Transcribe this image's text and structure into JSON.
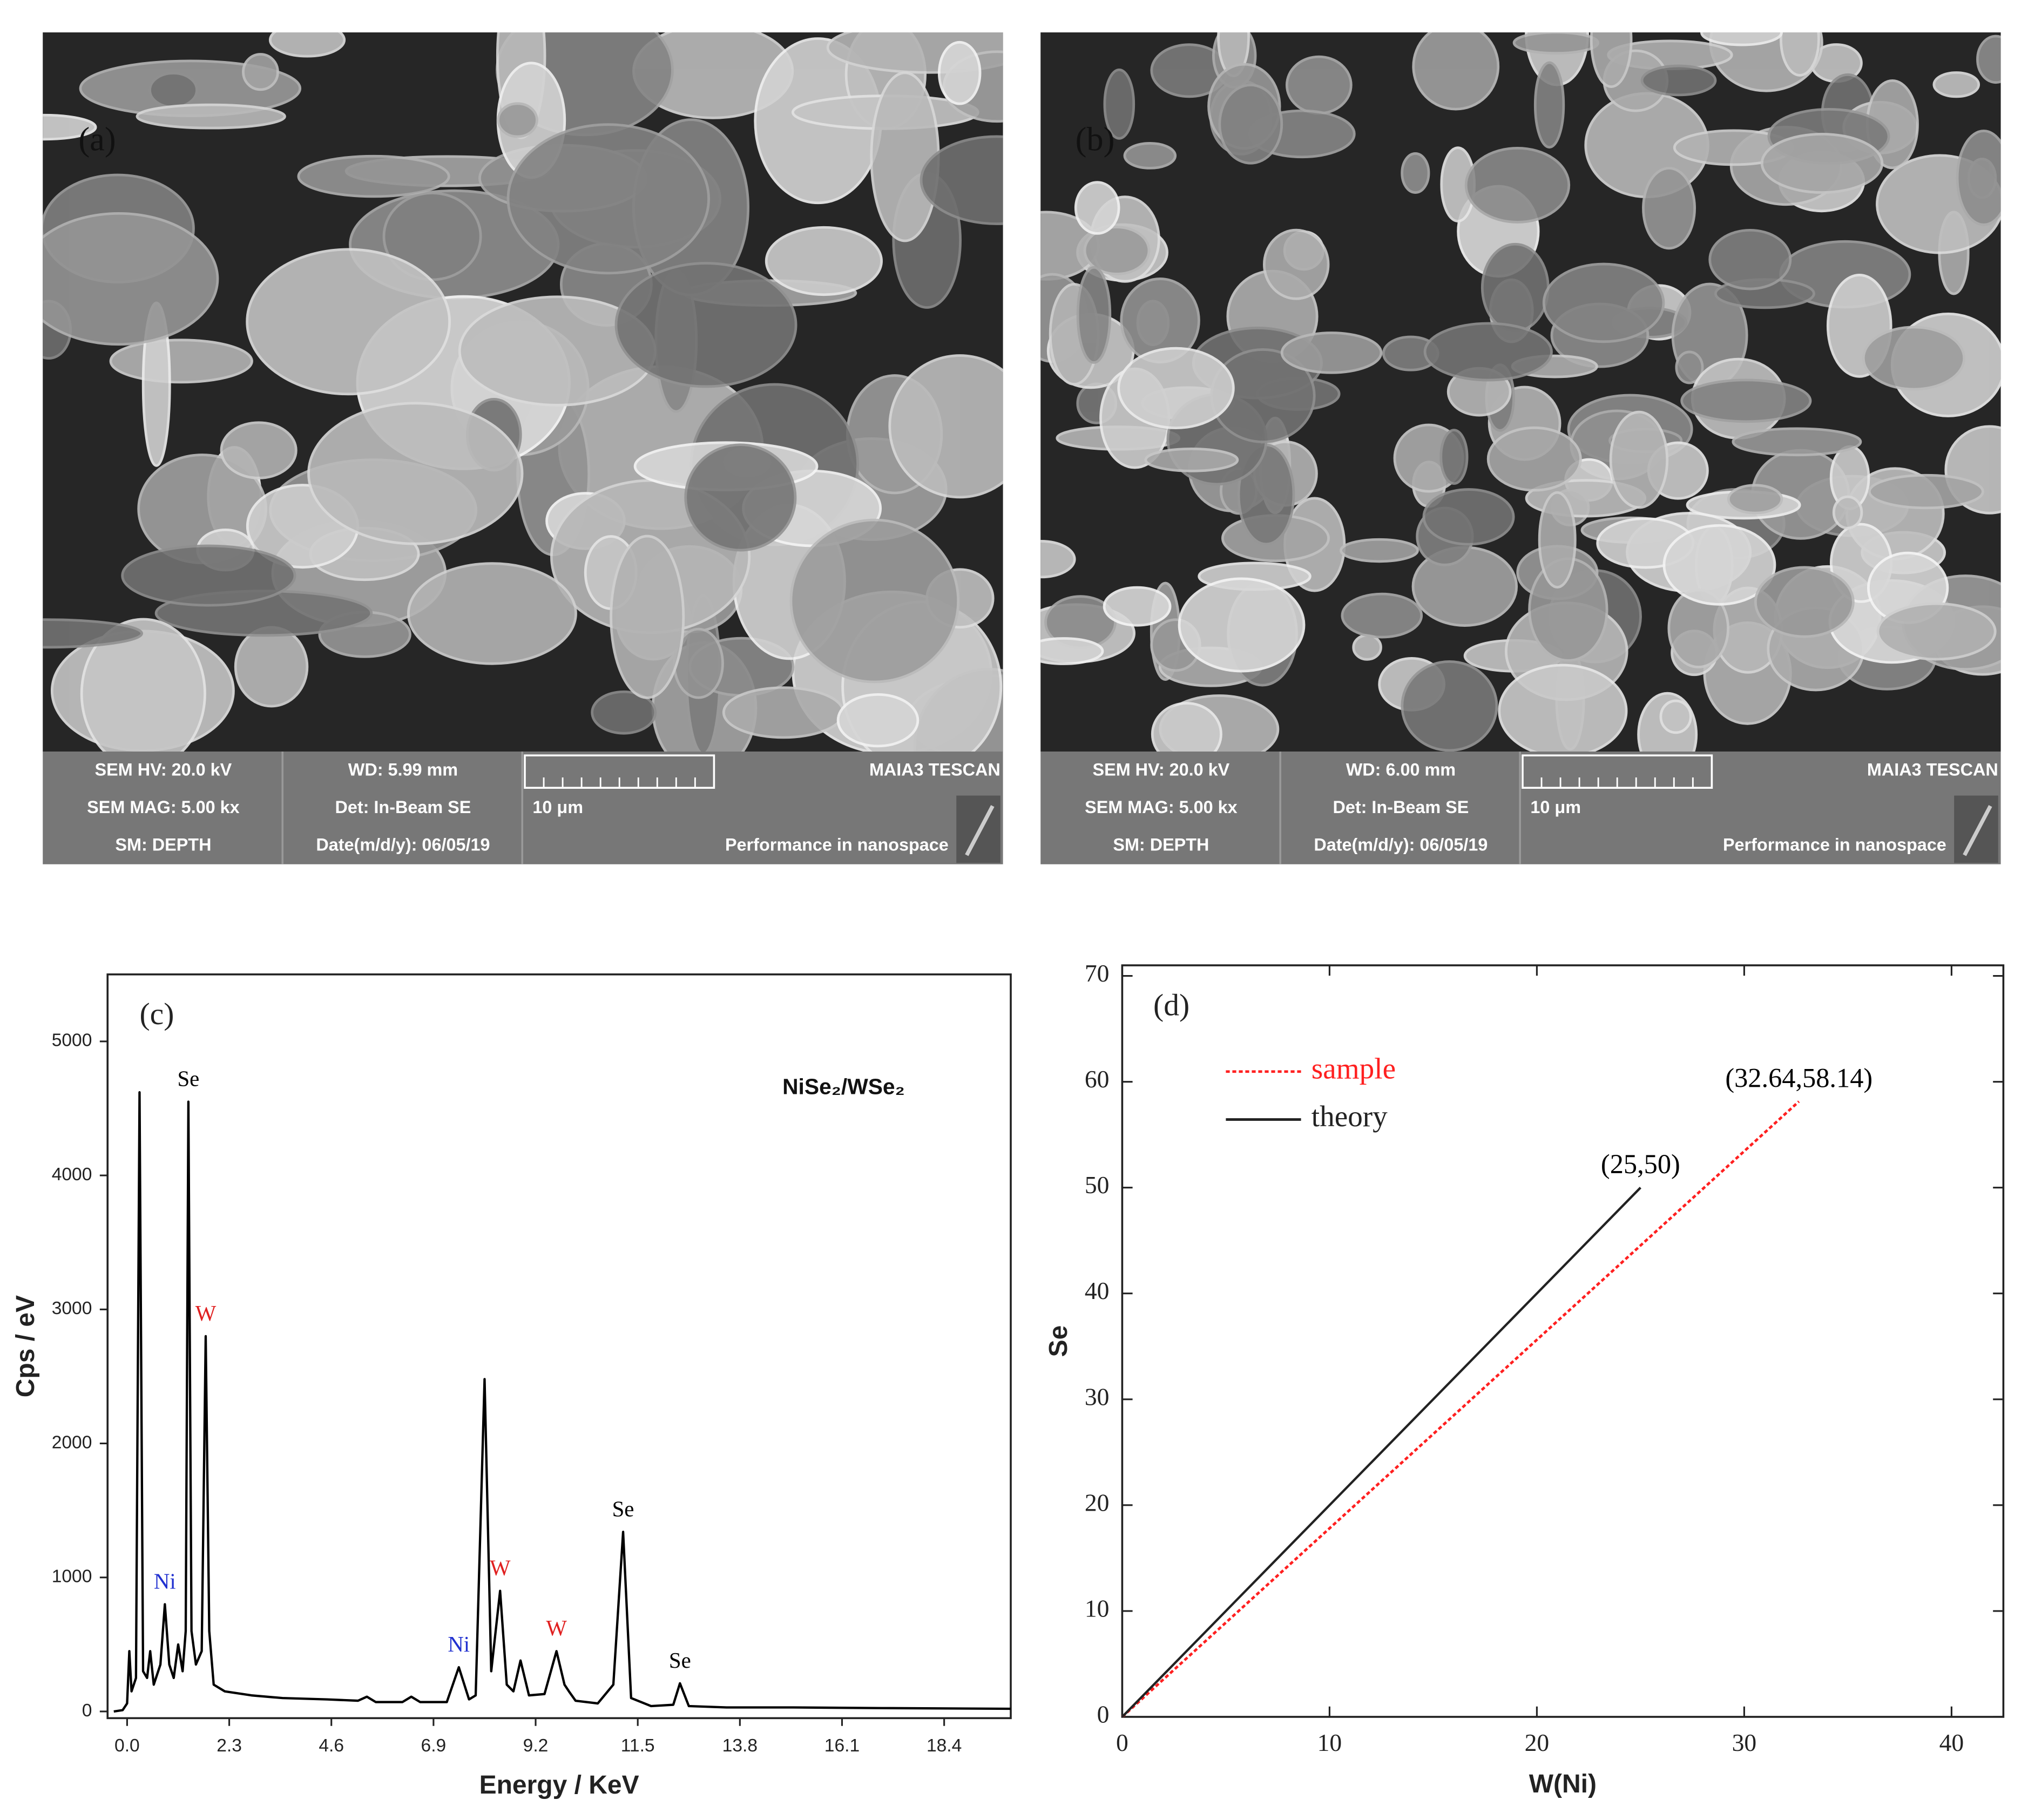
{
  "panels": [
    {
      "label": "(a)",
      "hv": "SEM HV: 20.0 kV",
      "wd": "WD: 5.99 mm",
      "maker": "MAIA3 TESCAN",
      "mag": "SEM MAG: 5.00 kx",
      "det": "Det: In-Beam SE",
      "scale": "10 μm",
      "sm": "SM: DEPTH",
      "date": "Date(m/d/y): 06/05/19",
      "slogan": "Performance in nanospace"
    },
    {
      "label": "(b)",
      "hv": "SEM HV: 20.0 kV",
      "wd": "WD: 6.00 mm",
      "maker": "MAIA3 TESCAN",
      "mag": "SEM MAG: 5.00 kx",
      "det": "Det: In-Beam SE",
      "scale": "10 μm",
      "sm": "SM: DEPTH",
      "date": "Date(m/d/y): 06/05/19",
      "slogan": "Performance in nanospace"
    }
  ],
  "chart_data": [
    {
      "type": "line",
      "title": "(c)",
      "legend_text": "NiSe₂/WSe₂",
      "x_label": "Energy / KeV",
      "y_label": "Cps / eV",
      "color": "#000000",
      "x": [
        -0.3,
        -0.1,
        0.0,
        0.05,
        0.1,
        0.2,
        0.28,
        0.36,
        0.45,
        0.52,
        0.6,
        0.75,
        0.85,
        0.95,
        1.05,
        1.15,
        1.25,
        1.32,
        1.38,
        1.45,
        1.55,
        1.68,
        1.77,
        1.85,
        1.95,
        2.2,
        2.8,
        3.5,
        4.5,
        5.2,
        5.4,
        5.6,
        6.2,
        6.4,
        6.6,
        7.2,
        7.47,
        7.7,
        7.85,
        8.05,
        8.2,
        8.4,
        8.55,
        8.7,
        8.86,
        9.05,
        9.4,
        9.67,
        9.85,
        9.95,
        10.1,
        10.6,
        10.95,
        11.17,
        11.35,
        11.8,
        12.3,
        12.45,
        12.65,
        13.5,
        15,
        17,
        19.9
      ],
      "values": [
        0,
        10,
        60,
        450,
        150,
        250,
        4620,
        300,
        250,
        450,
        200,
        350,
        800,
        350,
        250,
        500,
        300,
        600,
        4550,
        600,
        350,
        450,
        2800,
        600,
        200,
        150,
        120,
        100,
        90,
        80,
        110,
        70,
        70,
        110,
        70,
        70,
        330,
        90,
        120,
        2480,
        300,
        900,
        200,
        150,
        380,
        120,
        130,
        450,
        200,
        150,
        80,
        60,
        200,
        1340,
        100,
        40,
        50,
        210,
        40,
        30,
        30,
        25,
        20
      ],
      "xlim": [
        -0.44,
        19.9
      ],
      "ylim": [
        -50,
        5500
      ],
      "xticks": [
        {
          "value": 0,
          "label": "0.0"
        },
        2.3,
        4.6,
        6.9,
        9.2,
        11.5,
        13.8,
        16.1,
        18.4
      ],
      "yticks": [
        0,
        1000,
        2000,
        3000,
        4000,
        5000
      ],
      "annotations": [
        {
          "text": "Se",
          "x": 1.38,
          "y": 4550,
          "color": "#000000"
        },
        {
          "text": "W",
          "x": 1.77,
          "y": 2800,
          "color": "#e02020"
        },
        {
          "text": "Ni",
          "x": 0.85,
          "y": 800,
          "color": "#2030d0"
        },
        {
          "text": "Ni",
          "x": 7.47,
          "y": 330,
          "color": "#2030d0"
        },
        {
          "text": "W",
          "x": 8.4,
          "y": 900,
          "color": "#e02020"
        },
        {
          "text": "W",
          "x": 9.67,
          "y": 450,
          "color": "#e02020"
        },
        {
          "text": "Se",
          "x": 11.17,
          "y": 1340,
          "color": "#000000"
        },
        {
          "text": "Se",
          "x": 12.45,
          "y": 210,
          "color": "#000000"
        }
      ]
    },
    {
      "type": "line",
      "title": "(d)",
      "x_label": "W(Ni)",
      "y_label": "Se",
      "legend": "upper left",
      "series": [
        {
          "name": "sample",
          "color": "#ff2020",
          "style": "dotted",
          "x": [
            0,
            32.64
          ],
          "values": [
            0,
            58.14
          ]
        },
        {
          "name": "theory",
          "color": "#222222",
          "style": "solid",
          "x": [
            0,
            25
          ],
          "values": [
            0,
            50
          ]
        }
      ],
      "xlim": [
        0,
        42.5
      ],
      "ylim": [
        0,
        71
      ],
      "xticks": [
        0,
        10,
        20,
        30,
        40
      ],
      "yticks": [
        0,
        10,
        20,
        30,
        40,
        50,
        60,
        70
      ],
      "annotations": [
        {
          "text": "(25,50)",
          "x": 25,
          "y": 50,
          "color": "#000000"
        },
        {
          "text": "(32.64,58.14)",
          "x": 32.64,
          "y": 58.14,
          "color": "#000000"
        }
      ]
    }
  ]
}
